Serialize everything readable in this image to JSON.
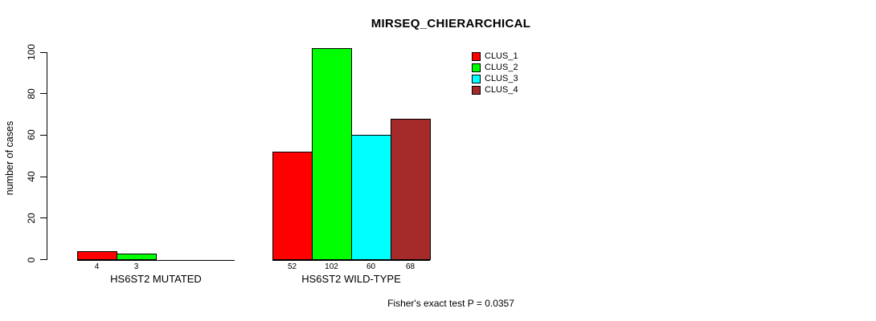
{
  "chart_data": {
    "type": "bar",
    "title": "MIRSEQ_CHIERARCHICAL",
    "ylabel": "number of cases",
    "xlabel": "",
    "ylim": [
      0,
      100
    ],
    "yticks": [
      0,
      20,
      40,
      60,
      80,
      100
    ],
    "grid": false,
    "legend_position": "top-right",
    "categories": [
      "HS6ST2 MUTATED",
      "HS6ST2 WILD-TYPE"
    ],
    "series": [
      {
        "name": "CLUS_1",
        "color": "#ff0000",
        "values": [
          4,
          52
        ]
      },
      {
        "name": "CLUS_2",
        "color": "#00ff00",
        "values": [
          3,
          102
        ]
      },
      {
        "name": "CLUS_3",
        "color": "#00ffff",
        "values": [
          0,
          60
        ]
      },
      {
        "name": "CLUS_4",
        "color": "#a52a2a",
        "values": [
          0,
          68
        ]
      }
    ],
    "bar_value_labels": [
      [
        "4",
        "3",
        "",
        ""
      ],
      [
        "52",
        "102",
        "60",
        "68"
      ]
    ],
    "annotation": "Fisher's exact test P = 0.0357"
  }
}
